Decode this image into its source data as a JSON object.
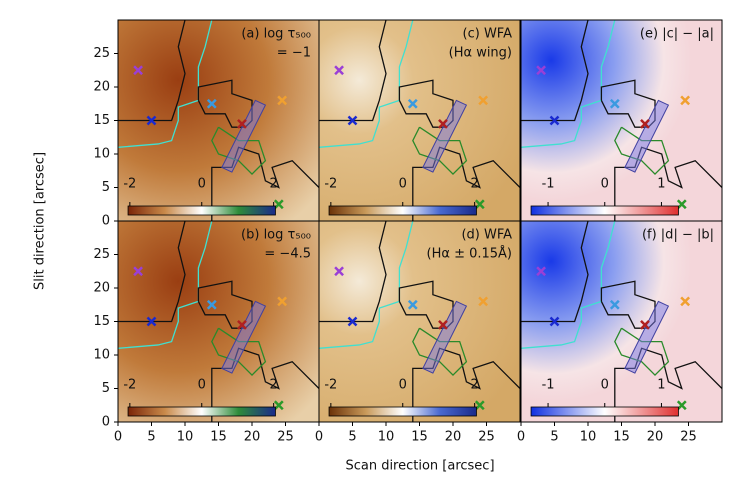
{
  "figure": {
    "xlabel": "Scan direction [arcsec]",
    "ylabel": "Slit direction [arcsec]"
  },
  "chart_data": [
    {
      "type": "image",
      "title": [
        "(a) log τ₅₀₀",
        "= −1"
      ],
      "xlim": [
        0,
        30
      ],
      "ylim": [
        0,
        30
      ],
      "yticks": [
        0,
        5,
        10,
        15,
        20,
        25
      ],
      "clim": [
        -2.05,
        2.05
      ],
      "cticks": [
        -2,
        0,
        2
      ],
      "colormap": [
        "#7a2508",
        "#c98a4a",
        "#ffffff",
        "#2e8b3a",
        "#1a2a8a"
      ]
    },
    {
      "type": "image",
      "title": [
        "(c) WFA",
        "(Hα wing)"
      ],
      "xlim": [
        0,
        30
      ],
      "ylim": [
        0,
        30
      ],
      "clim": [
        -2.05,
        2.05
      ],
      "cticks": [
        -2,
        0,
        2
      ],
      "colormap": [
        "#6b3208",
        "#c99a5a",
        "#ffffff",
        "#4a6ad0",
        "#1a2a8a"
      ]
    },
    {
      "type": "image",
      "title": [
        "(e) |c| − |a|"
      ],
      "xlim": [
        0,
        30
      ],
      "ylim": [
        0,
        30
      ],
      "clim": [
        -1.3,
        1.3
      ],
      "cticks": [
        -1,
        0,
        1
      ],
      "colormap": [
        "#1030e0",
        "#ffffff",
        "#e03030"
      ]
    },
    {
      "type": "image",
      "title": [
        "(b) log τ₅₀₀",
        "= −4.5"
      ],
      "xlim": [
        0,
        30
      ],
      "ylim": [
        0,
        30
      ],
      "xticks": [
        0,
        5,
        10,
        15,
        20,
        25
      ],
      "yticks": [
        0,
        5,
        10,
        15,
        20,
        25
      ],
      "clim": [
        -2.05,
        2.05
      ],
      "cticks": [
        -2,
        0,
        2
      ],
      "colormap": [
        "#7a2508",
        "#c98a4a",
        "#ffffff",
        "#2e8b3a",
        "#1a2a8a"
      ]
    },
    {
      "type": "image",
      "title": [
        "(d) WFA",
        "(Hα ± 0.15Å)"
      ],
      "xlim": [
        0,
        30
      ],
      "ylim": [
        0,
        30
      ],
      "xticks": [
        0,
        5,
        10,
        15,
        20,
        25
      ],
      "clim": [
        -2.05,
        2.05
      ],
      "cticks": [
        -2,
        0,
        2
      ],
      "colormap": [
        "#6b3208",
        "#c99a5a",
        "#ffffff",
        "#4a6ad0",
        "#1a2a8a"
      ]
    },
    {
      "type": "image",
      "title": [
        "(f) |d| − |b|"
      ],
      "xlim": [
        0,
        30
      ],
      "ylim": [
        0,
        30
      ],
      "xticks": [
        0,
        5,
        10,
        15,
        20,
        25
      ],
      "clim": [
        -1.3,
        1.3
      ],
      "cticks": [
        -1,
        0,
        1
      ],
      "colormap": [
        "#1030e0",
        "#ffffff",
        "#e03030"
      ]
    }
  ]
}
